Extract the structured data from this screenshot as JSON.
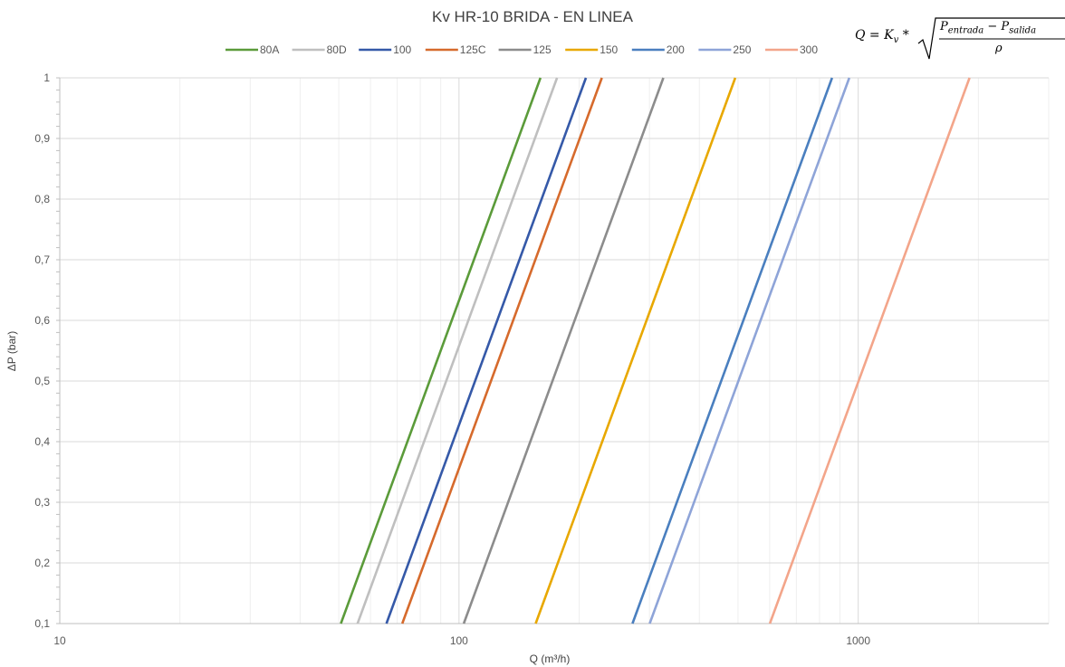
{
  "chart_data": {
    "type": "line",
    "title": "Kv HR-10 BRIDA - EN LINEA",
    "xlabel": "Q (m³/h)",
    "ylabel": "ΔP (bar)",
    "x_scale": "log",
    "xlim": [
      10,
      3000
    ],
    "ylim": [
      0.1,
      1
    ],
    "x_ticks": [
      "10",
      "100",
      "1000"
    ],
    "y_ticks": [
      "0,1",
      "0,2",
      "0,3",
      "0,4",
      "0,5",
      "0,6",
      "0,7",
      "0,8",
      "0,9",
      "1"
    ],
    "grid": true,
    "legend_position": "top",
    "formula": {
      "lhs": "Q = K",
      "lhs_sub": "v",
      "times": "*",
      "num_a": "P",
      "num_a_sub": "entrada",
      "minus": "−",
      "num_b": "P",
      "num_b_sub": "salida",
      "den": "ρ"
    },
    "series": [
      {
        "name": "80A",
        "color": "#5b9b3a",
        "kv": 160,
        "x": [
          50.6,
          160
        ],
        "y": [
          0.1,
          1
        ]
      },
      {
        "name": "80D",
        "color": "#bfbfbf",
        "kv": 176,
        "x": [
          55.7,
          176
        ],
        "y": [
          0.1,
          1
        ]
      },
      {
        "name": "100",
        "color": "#3559a8",
        "kv": 208,
        "x": [
          65.8,
          208
        ],
        "y": [
          0.1,
          1
        ]
      },
      {
        "name": "125C",
        "color": "#d66a2c",
        "kv": 228,
        "x": [
          72.1,
          228
        ],
        "y": [
          0.1,
          1
        ]
      },
      {
        "name": "125",
        "color": "#8c8c8c",
        "kv": 325,
        "x": [
          102.8,
          325
        ],
        "y": [
          0.1,
          1
        ]
      },
      {
        "name": "150",
        "color": "#e8a800",
        "kv": 492,
        "x": [
          155.6,
          492
        ],
        "y": [
          0.1,
          1
        ]
      },
      {
        "name": "200",
        "color": "#4a7fbf",
        "kv": 860,
        "x": [
          272,
          860
        ],
        "y": [
          0.1,
          1
        ]
      },
      {
        "name": "250",
        "color": "#8ea4d8",
        "kv": 950,
        "x": [
          300.4,
          950
        ],
        "y": [
          0.1,
          1
        ]
      },
      {
        "name": "300",
        "color": "#f3a58a",
        "kv": 1900,
        "x": [
          600.8,
          1900
        ],
        "y": [
          0.1,
          1
        ]
      }
    ]
  }
}
